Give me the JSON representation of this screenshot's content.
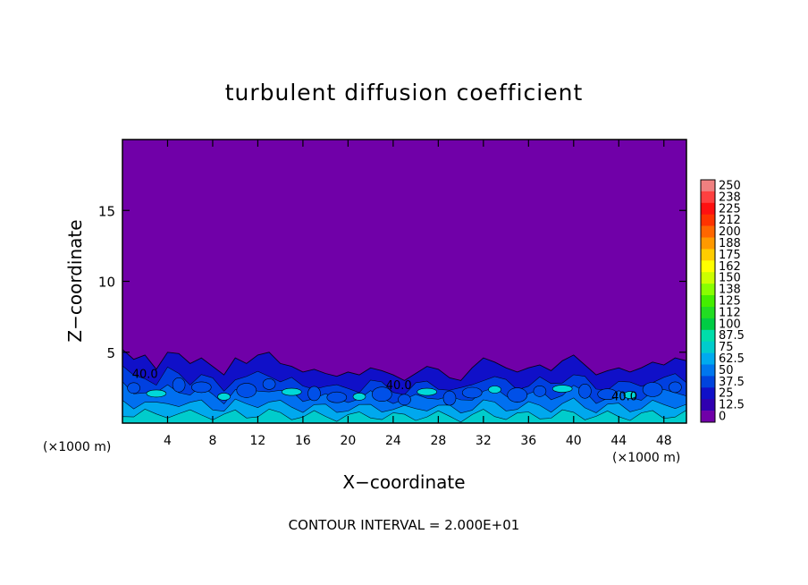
{
  "chart_data": {
    "type": "heatmap",
    "title": "turbulent diffusion coefficient",
    "xlabel": "X−coordinate",
    "ylabel": "Z−coordinate",
    "x_unit_left": "(×1000 m)",
    "x_unit_right": "(×1000 m)",
    "footer": "CONTOUR INTERVAL = 2.000E+01",
    "xlim": [
      0,
      50
    ],
    "ylim": [
      0,
      20
    ],
    "x_ticks": [
      4,
      8,
      12,
      16,
      20,
      24,
      28,
      32,
      36,
      40,
      44,
      48
    ],
    "y_ticks": [
      5,
      10,
      15
    ],
    "colorbar": {
      "levels": [
        "250",
        "238",
        "225",
        "212",
        "200",
        "188",
        "175",
        "162",
        "150",
        "138",
        "125",
        "112",
        "100",
        "87.5",
        "75",
        "62.5",
        "50",
        "37.5",
        "25",
        "12.5",
        "0"
      ],
      "colors": [
        "#f08080",
        "#ff4040",
        "#ff1010",
        "#ff3300",
        "#ff6600",
        "#ff9900",
        "#ffcc00",
        "#ffff00",
        "#ccff00",
        "#88ff00",
        "#44ee00",
        "#22dd22",
        "#00cc44",
        "#00ddaa",
        "#00cccc",
        "#00aaee",
        "#0077ee",
        "#0044dd",
        "#1010c8",
        "#3000b0",
        "#7000a8"
      ]
    },
    "background_color": "#7000a8",
    "contour_labels": [
      {
        "text": "40.0",
        "x": 2.0,
        "z": 3.2
      },
      {
        "text": "40.0",
        "x": 24.5,
        "z": 2.4
      },
      {
        "text": "40.0",
        "x": 44.5,
        "z": 1.6
      }
    ],
    "boundary_layer_height": [
      5.2,
      4.5,
      4.8,
      3.8,
      5.0,
      4.9,
      4.2,
      4.6,
      4.0,
      3.4,
      4.6,
      4.2,
      4.8,
      5.0,
      4.2,
      4.0,
      3.6,
      3.8,
      3.5,
      3.3,
      3.6,
      3.4,
      3.9,
      3.7,
      3.4,
      3.0,
      3.5,
      4.0,
      3.8,
      3.2,
      3.0,
      3.9,
      4.6,
      4.3,
      3.9,
      3.6,
      3.9,
      4.1,
      3.7,
      4.4,
      4.8,
      4.1,
      3.4,
      3.7,
      3.9,
      3.6,
      3.9,
      4.3,
      4.1,
      4.6,
      4.4
    ]
  }
}
